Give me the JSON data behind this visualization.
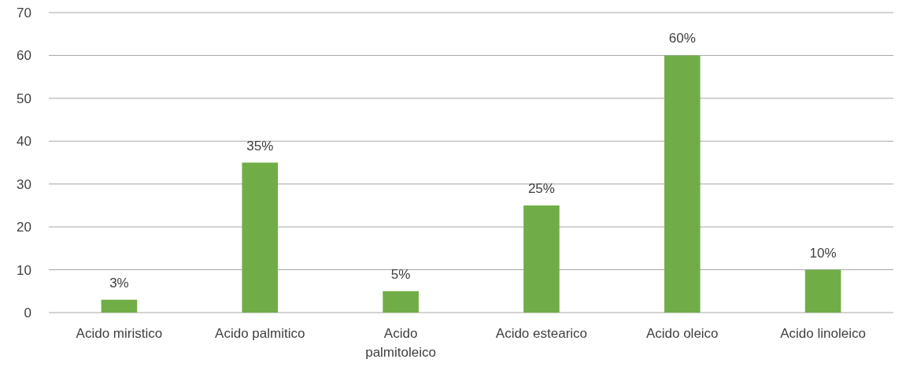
{
  "chart_data": {
    "type": "bar",
    "categories": [
      "Acido miristico",
      "Acido palmitico",
      "Acido palmitoleico",
      "Acido estearico",
      "Acido oleico",
      "Acido linoleico"
    ],
    "values": [
      3,
      35,
      5,
      25,
      60,
      10
    ],
    "value_labels": [
      "3%",
      "35%",
      "5%",
      "25%",
      "60%",
      "10%"
    ],
    "color": "#70ad47",
    "ylim": [
      0,
      70
    ],
    "yticks": [
      0,
      10,
      20,
      30,
      40,
      50,
      60,
      70
    ],
    "grid": "y"
  }
}
